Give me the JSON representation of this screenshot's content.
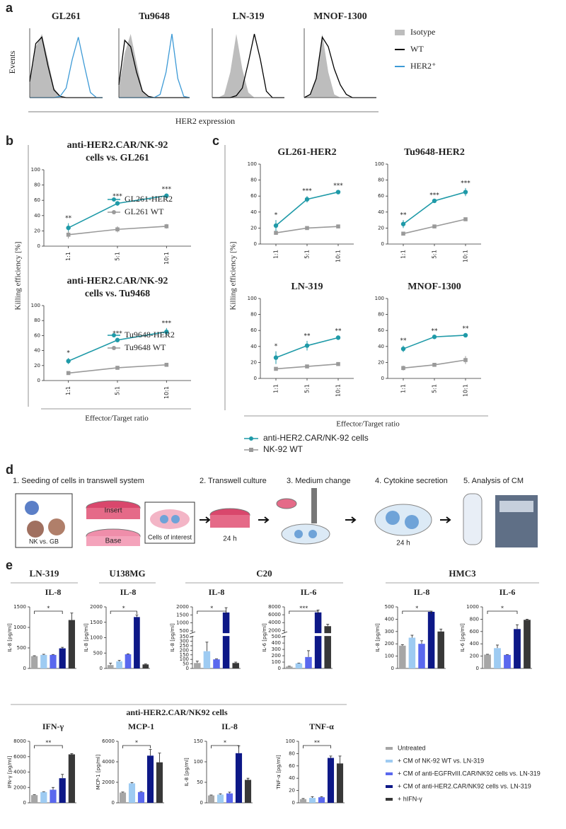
{
  "panel_labels": [
    "a",
    "b",
    "c",
    "d",
    "e"
  ],
  "figure_a": {
    "y_label": "Events",
    "x_label": "HER2 expression",
    "legend": [
      {
        "name": "Isotype",
        "color": "#bdbdbd"
      },
      {
        "name": "WT",
        "color": "#000000"
      },
      {
        "name": "HER2⁺",
        "color": "#3d9ad6"
      }
    ]
  },
  "figure_b": {
    "y_label": "Killing efficiency [%]",
    "x_label": "Effector/Target ratio"
  },
  "figure_c": {
    "y_label": "Killing efficiency [%]",
    "x_label": "Effector/Target ratio",
    "legend": [
      {
        "name": "anti-HER2.CAR/NK-92 cells",
        "color": "#1f9aa8"
      },
      {
        "name": "NK-92 WT",
        "color": "#9a9a9a"
      }
    ]
  },
  "figure_d": {
    "steps": [
      "1. Seeding of cells in transwell system",
      "2. Transwell culture",
      "3. Medium change",
      "4. Cytokine secretion",
      "5. Analysis of CM"
    ],
    "labels": {
      "inset": "NK vs. GB",
      "insert": "Insert",
      "base": "Base",
      "cells": "Cells of interest",
      "time_culture": "24 h",
      "time_secretion": "24 h"
    }
  },
  "figure_e": {
    "groups": [
      "LN-319",
      "U138MG",
      "C20",
      "HMC3"
    ],
    "row2_header": "anti-HER2.CAR/NK92 cells",
    "legend": [
      {
        "name": "Untreated",
        "color": "#a6a6a6"
      },
      {
        "name": "+ CM of NK-92 WT vs. LN-319",
        "color": "#9ecbf2"
      },
      {
        "name": "+ CM of anti-EGFRvIII.CAR/NK92 cells vs. LN-319",
        "color": "#5a68ee"
      },
      {
        "name": "+ CM of anti-HER2.CAR/NK92 cells vs. LN-319",
        "color": "#0d1887"
      },
      {
        "name": "+ hIFN-γ",
        "color": "#383838"
      }
    ]
  },
  "chart_data": [
    {
      "type": "density",
      "title": "GL261",
      "x": [
        0,
        1,
        2,
        3,
        4,
        5,
        6,
        7,
        8,
        9,
        10,
        11,
        12
      ],
      "xlim": [
        0,
        12
      ],
      "ylim": [
        0,
        100
      ],
      "series": [
        {
          "color": "#bdbdbd",
          "fill": true,
          "values": [
            20,
            80,
            100,
            60,
            15,
            3,
            0,
            0,
            0,
            0,
            0,
            0,
            0
          ]
        },
        {
          "color": "#000000",
          "values": [
            25,
            85,
            95,
            50,
            12,
            2,
            0,
            0,
            0,
            0,
            0,
            0,
            0
          ]
        },
        {
          "color": "#3d9ad6",
          "values": [
            0,
            0,
            0,
            0,
            0,
            2,
            15,
            60,
            95,
            50,
            8,
            0,
            0
          ]
        }
      ]
    },
    {
      "type": "density",
      "title": "Tu9648",
      "x": [
        0,
        1,
        2,
        3,
        4,
        5,
        6,
        7,
        8,
        9,
        10,
        11,
        12
      ],
      "xlim": [
        0,
        12
      ],
      "ylim": [
        0,
        100
      ],
      "series": [
        {
          "color": "#bdbdbd",
          "fill": true,
          "values": [
            15,
            70,
            100,
            55,
            12,
            2,
            0,
            0,
            0,
            0,
            0,
            0,
            0
          ]
        },
        {
          "color": "#000000",
          "values": [
            20,
            90,
            80,
            40,
            10,
            2,
            0,
            0,
            0,
            0,
            0,
            0,
            0
          ]
        },
        {
          "color": "#3d9ad6",
          "values": [
            0,
            0,
            0,
            0,
            0,
            0,
            0,
            5,
            40,
            100,
            30,
            2,
            0
          ]
        }
      ]
    },
    {
      "type": "density",
      "title": "LN-319",
      "x": [
        0,
        1,
        2,
        3,
        4,
        5,
        6,
        7,
        8,
        9,
        10,
        11,
        12
      ],
      "xlim": [
        0,
        12
      ],
      "ylim": [
        0,
        100
      ],
      "series": [
        {
          "color": "#bdbdbd",
          "fill": true,
          "values": [
            0,
            0,
            5,
            40,
            100,
            45,
            8,
            0,
            0,
            0,
            0,
            0,
            0
          ]
        },
        {
          "color": "#000000",
          "values": [
            0,
            0,
            0,
            0,
            3,
            15,
            55,
            100,
            60,
            10,
            0,
            0,
            0
          ]
        }
      ]
    },
    {
      "type": "density",
      "title": "MNOF-1300",
      "x": [
        0,
        1,
        2,
        3,
        4,
        5,
        6,
        7,
        8,
        9,
        10,
        11,
        12
      ],
      "xlim": [
        0,
        12
      ],
      "ylim": [
        0,
        100
      ],
      "series": [
        {
          "color": "#bdbdbd",
          "fill": true,
          "values": [
            0,
            3,
            30,
            100,
            40,
            5,
            0,
            0,
            0,
            0,
            0,
            0,
            0
          ]
        },
        {
          "color": "#000000",
          "values": [
            0,
            5,
            30,
            95,
            80,
            45,
            20,
            5,
            0,
            0,
            0,
            0,
            0
          ]
        }
      ]
    },
    {
      "type": "line",
      "title": [
        "anti-HER2.CAR/NK-92",
        "cells vs. GL261"
      ],
      "categories": [
        "1:1",
        "5:1",
        "10:1"
      ],
      "ylim": [
        0,
        100
      ],
      "yticks": [
        0,
        20,
        40,
        60,
        80,
        100
      ],
      "legend": "right",
      "series": [
        {
          "name": "GL261-HER2",
          "color": "#1f9aa8",
          "values": [
            24,
            56,
            66
          ],
          "errors": [
            6,
            3,
            2
          ]
        },
        {
          "name": "GL261 WT",
          "color": "#9a9a9a",
          "values": [
            15,
            22,
            26
          ],
          "errors": [
            5,
            4,
            3
          ]
        }
      ],
      "significance": [
        "**",
        "***",
        "***"
      ]
    },
    {
      "type": "line",
      "title": [
        "anti-HER2.CAR/NK-92",
        "cells vs. Tu9468"
      ],
      "categories": [
        "1:1",
        "5:1",
        "10:1"
      ],
      "ylim": [
        0,
        100
      ],
      "yticks": [
        0,
        20,
        40,
        60,
        80,
        100
      ],
      "legend": "right",
      "series": [
        {
          "name": "Tu9648-HER2",
          "color": "#1f9aa8",
          "values": [
            26,
            54,
            65
          ],
          "errors": [
            4,
            2,
            5
          ]
        },
        {
          "name": "Tu9648 WT",
          "color": "#9a9a9a",
          "values": [
            10,
            17,
            21
          ],
          "errors": [
            2,
            2,
            2
          ]
        }
      ],
      "significance": [
        "*",
        "***",
        "***"
      ]
    },
    {
      "type": "line",
      "title": [
        "GL261-HER2"
      ],
      "categories": [
        "1:1",
        "5:1",
        "10:1"
      ],
      "ylim": [
        0,
        100
      ],
      "yticks": [
        0,
        20,
        40,
        60,
        80,
        100
      ],
      "series": [
        {
          "values": [
            23,
            56,
            65
          ],
          "errors": [
            7,
            4,
            2
          ]
        },
        {
          "values": [
            14,
            20,
            22
          ],
          "errors": [
            2,
            2,
            1
          ]
        }
      ],
      "significance": [
        "*",
        "***",
        "***"
      ]
    },
    {
      "type": "line",
      "title": [
        "Tu9648-HER2"
      ],
      "categories": [
        "1:1",
        "5:1",
        "10:1"
      ],
      "ylim": [
        0,
        100
      ],
      "yticks": [
        0,
        20,
        40,
        60,
        80,
        100
      ],
      "series": [
        {
          "values": [
            25,
            54,
            65
          ],
          "errors": [
            5,
            1,
            5
          ]
        },
        {
          "values": [
            13,
            22,
            31
          ],
          "errors": [
            1,
            1,
            1
          ]
        }
      ],
      "significance": [
        "**",
        "***",
        "***"
      ]
    },
    {
      "type": "line",
      "title": [
        "LN-319"
      ],
      "categories": [
        "1:1",
        "5:1",
        "10:1"
      ],
      "ylim": [
        0,
        100
      ],
      "yticks": [
        0,
        20,
        40,
        60,
        80,
        100
      ],
      "series": [
        {
          "values": [
            26,
            41,
            51
          ],
          "errors": [
            8,
            6,
            2
          ]
        },
        {
          "values": [
            12,
            15,
            18
          ],
          "errors": [
            2,
            1,
            2
          ]
        }
      ],
      "significance": [
        "*",
        "**",
        "**"
      ]
    },
    {
      "type": "line",
      "title": [
        "MNOF-1300"
      ],
      "categories": [
        "1:1",
        "5:1",
        "10:1"
      ],
      "ylim": [
        0,
        100
      ],
      "yticks": [
        0,
        20,
        40,
        60,
        80,
        100
      ],
      "series": [
        {
          "values": [
            37,
            52,
            54
          ],
          "errors": [
            4,
            1,
            2
          ]
        },
        {
          "values": [
            13,
            17,
            23
          ],
          "errors": [
            3,
            1,
            5
          ]
        }
      ],
      "significance": [
        "**",
        "**",
        "**"
      ]
    },
    {
      "type": "bar",
      "title": "IL-8",
      "y_label": "IL-8 [pg/ml]",
      "ylim": [
        0,
        1500
      ],
      "yticks": [
        0,
        500,
        1000,
        1500
      ],
      "values": [
        300,
        330,
        330,
        490,
        1180
      ],
      "errors": [
        10,
        15,
        10,
        25,
        170
      ],
      "significance": "*"
    },
    {
      "type": "bar",
      "title": "IL-8",
      "y_label": "IL-8 [pg/ml]",
      "ylim": [
        0,
        2000
      ],
      "yticks": [
        0,
        500,
        1000,
        1500,
        2000
      ],
      "values": [
        110,
        230,
        460,
        1670,
        130
      ],
      "errors": [
        60,
        30,
        15,
        70,
        15
      ],
      "significance": "*"
    },
    {
      "type": "bar",
      "title": "IL-8",
      "y_label": "IL-8 [pg/ml]",
      "ylim": [
        0,
        2000
      ],
      "ybreak": [
        350,
        400
      ],
      "yticks": [
        0,
        50,
        100,
        150,
        200,
        250,
        300,
        350,
        500,
        1000,
        1500,
        2000
      ],
      "values": [
        60,
        190,
        100,
        1650,
        60
      ],
      "errors": [
        20,
        100,
        5,
        300,
        10
      ],
      "significance": "*"
    },
    {
      "type": "bar",
      "title": "IL-6",
      "y_label": "IL-6 [pg/ml]",
      "ylim": [
        0,
        8000
      ],
      "ybreak": [
        500,
        1500
      ],
      "yticks": [
        0,
        100,
        200,
        300,
        400,
        500,
        2000,
        4000,
        6000,
        8000
      ],
      "values": [
        30,
        80,
        180,
        6600,
        3100
      ],
      "errors": [
        5,
        5,
        100,
        600,
        500
      ],
      "significance": "***"
    },
    {
      "type": "bar",
      "title": "IL-8",
      "y_label": "IL-8 [pg/ml]",
      "ylim": [
        0,
        500
      ],
      "yticks": [
        0,
        100,
        200,
        300,
        400,
        500
      ],
      "values": [
        185,
        250,
        200,
        460,
        300
      ],
      "errors": [
        8,
        20,
        25,
        5,
        20
      ],
      "significance": "*"
    },
    {
      "type": "bar",
      "title": "IL-6",
      "y_label": "IL-6 [pg/ml]",
      "ylim": [
        0,
        1000
      ],
      "yticks": [
        0,
        200,
        400,
        600,
        800,
        1000
      ],
      "values": [
        225,
        330,
        220,
        640,
        790
      ],
      "errors": [
        5,
        50,
        5,
        70,
        10
      ],
      "significance": "*"
    },
    {
      "type": "bar",
      "title": "IFN-γ",
      "y_label": "IFN-γ [pg/ml]",
      "ylim": [
        0,
        8000
      ],
      "yticks": [
        0,
        2000,
        4000,
        6000,
        8000
      ],
      "values": [
        1000,
        1400,
        1700,
        3200,
        6300
      ],
      "errors": [
        50,
        50,
        300,
        500,
        100
      ],
      "significance": "**"
    },
    {
      "type": "bar",
      "title": "MCP-1",
      "y_label": "MCP-1 [pg/ml]",
      "ylim": [
        0,
        6000
      ],
      "yticks": [
        0,
        2000,
        4000,
        6000
      ],
      "values": [
        1000,
        1900,
        1050,
        4600,
        3950
      ],
      "errors": [
        50,
        80,
        50,
        600,
        900
      ],
      "significance": "*"
    },
    {
      "type": "bar",
      "title": "IL-8",
      "y_label": "IL-8 [pg/ml]",
      "ylim": [
        0,
        150
      ],
      "yticks": [
        0,
        50,
        100,
        150
      ],
      "values": [
        18,
        20,
        23,
        121,
        56
      ],
      "errors": [
        1,
        2,
        3,
        18,
        4
      ],
      "significance": "*"
    },
    {
      "type": "bar",
      "title": "TNF-α",
      "y_label": "TNF-α [pg/ml]",
      "ylim": [
        0,
        100
      ],
      "yticks": [
        0,
        20,
        40,
        60,
        80,
        100
      ],
      "values": [
        6,
        8,
        9,
        73,
        64
      ],
      "errors": [
        1,
        2,
        1,
        3,
        12
      ],
      "significance": "**"
    }
  ]
}
